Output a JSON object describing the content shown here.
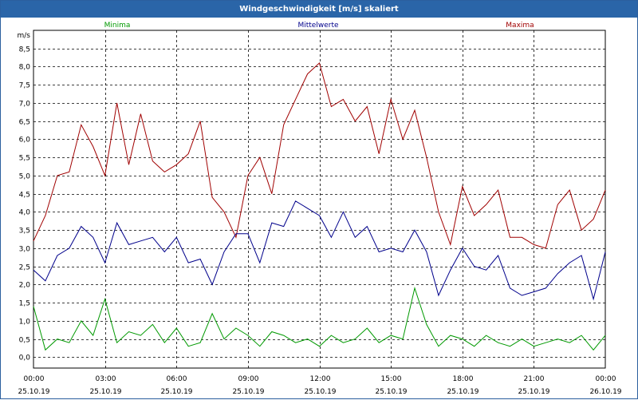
{
  "window": {
    "title": "Windgeschwindigkeit [m/s] skaliert"
  },
  "chart_data": {
    "type": "line",
    "title": "Windgeschwindigkeit [m/s] skaliert",
    "ylabel": "m/s",
    "xlabel": "",
    "ylim": [
      -0.3,
      9.0
    ],
    "xlim": [
      0,
      24
    ],
    "grid": true,
    "legend": [
      "Minima",
      "Mittelwerte",
      "Maxima"
    ],
    "legend_position": "top",
    "y_ticks": [
      "0,0",
      "0,5",
      "1,0",
      "1,5",
      "2,0",
      "2,5",
      "3,0",
      "3,5",
      "4,0",
      "4,5",
      "5,0",
      "5,5",
      "6,0",
      "6,5",
      "7,0",
      "7,5",
      "8,0",
      "8,5"
    ],
    "x_ticks": [
      {
        "time": "00:00",
        "date": "25.10.19"
      },
      {
        "time": "03:00",
        "date": "25.10.19"
      },
      {
        "time": "06:00",
        "date": "25.10.19"
      },
      {
        "time": "09:00",
        "date": "25.10.19"
      },
      {
        "time": "12:00",
        "date": "25.10.19"
      },
      {
        "time": "15:00",
        "date": "25.10.19"
      },
      {
        "time": "18:00",
        "date": "25.10.19"
      },
      {
        "time": "21:00",
        "date": "25.10.19"
      },
      {
        "time": "00:00",
        "date": "26.10.19"
      }
    ],
    "series": [
      {
        "name": "Maxima",
        "color": "#a00000",
        "x": [
          0.0,
          0.5,
          1.0,
          1.5,
          2.0,
          2.5,
          3.0,
          3.5,
          4.0,
          4.5,
          5.0,
          5.5,
          6.0,
          6.5,
          7.0,
          7.5,
          8.0,
          8.5,
          9.0,
          9.5,
          10.0,
          10.5,
          11.0,
          11.5,
          12.0,
          12.5,
          13.0,
          13.5,
          14.0,
          14.5,
          15.0,
          15.5,
          16.0,
          16.5,
          17.0,
          17.5,
          18.0,
          18.5,
          19.0,
          19.5,
          20.0,
          20.5,
          21.0,
          21.5,
          22.0,
          22.5,
          23.0,
          23.5,
          24.0
        ],
        "y": [
          3.2,
          3.9,
          5.0,
          5.1,
          6.4,
          5.8,
          5.0,
          7.0,
          5.3,
          6.7,
          5.4,
          5.1,
          5.3,
          5.6,
          6.5,
          4.4,
          4.0,
          3.3,
          5.0,
          5.5,
          4.5,
          6.4,
          7.1,
          7.8,
          8.1,
          6.9,
          7.1,
          6.5,
          6.9,
          5.6,
          7.1,
          6.0,
          6.8,
          5.5,
          4.0,
          3.1,
          4.7,
          3.9,
          4.2,
          4.6,
          3.3,
          3.3,
          3.1,
          3.0,
          4.2,
          4.6,
          3.5,
          3.8,
          4.6
        ]
      },
      {
        "name": "Mittelwerte",
        "color": "#00008b",
        "x": [
          0.0,
          0.5,
          1.0,
          1.5,
          2.0,
          2.5,
          3.0,
          3.5,
          4.0,
          4.5,
          5.0,
          5.5,
          6.0,
          6.5,
          7.0,
          7.5,
          8.0,
          8.5,
          9.0,
          9.5,
          10.0,
          10.5,
          11.0,
          11.5,
          12.0,
          12.5,
          13.0,
          13.5,
          14.0,
          14.5,
          15.0,
          15.5,
          16.0,
          16.5,
          17.0,
          17.5,
          18.0,
          18.5,
          19.0,
          19.5,
          20.0,
          20.5,
          21.0,
          21.5,
          22.0,
          22.5,
          23.0,
          23.5,
          24.0
        ],
        "y": [
          2.4,
          2.1,
          2.8,
          3.0,
          3.6,
          3.3,
          2.6,
          3.7,
          3.1,
          3.2,
          3.3,
          2.9,
          3.3,
          2.6,
          2.7,
          2.0,
          2.9,
          3.4,
          3.4,
          2.6,
          3.7,
          3.6,
          4.3,
          4.1,
          3.9,
          3.3,
          4.0,
          3.3,
          3.6,
          2.9,
          3.0,
          2.9,
          3.5,
          2.9,
          1.7,
          2.4,
          3.0,
          2.5,
          2.4,
          2.8,
          1.9,
          1.7,
          1.8,
          1.9,
          2.3,
          2.6,
          2.8,
          1.6,
          2.9
        ]
      },
      {
        "name": "Minima",
        "color": "#009900",
        "x": [
          0.0,
          0.5,
          1.0,
          1.5,
          2.0,
          2.5,
          3.0,
          3.5,
          4.0,
          4.5,
          5.0,
          5.5,
          6.0,
          6.5,
          7.0,
          7.5,
          8.0,
          8.5,
          9.0,
          9.5,
          10.0,
          10.5,
          11.0,
          11.5,
          12.0,
          12.5,
          13.0,
          13.5,
          14.0,
          14.5,
          15.0,
          15.5,
          16.0,
          16.5,
          17.0,
          17.5,
          18.0,
          18.5,
          19.0,
          19.5,
          20.0,
          20.5,
          21.0,
          21.5,
          22.0,
          22.5,
          23.0,
          23.5,
          24.0
        ],
        "y": [
          1.4,
          0.2,
          0.5,
          0.4,
          1.0,
          0.6,
          1.6,
          0.4,
          0.7,
          0.6,
          0.9,
          0.4,
          0.8,
          0.3,
          0.4,
          1.2,
          0.5,
          0.8,
          0.6,
          0.3,
          0.7,
          0.6,
          0.4,
          0.5,
          0.3,
          0.6,
          0.4,
          0.5,
          0.8,
          0.4,
          0.6,
          0.5,
          1.9,
          0.9,
          0.3,
          0.6,
          0.5,
          0.3,
          0.6,
          0.4,
          0.3,
          0.5,
          0.3,
          0.4,
          0.5,
          0.4,
          0.6,
          0.2,
          0.6
        ]
      }
    ]
  }
}
